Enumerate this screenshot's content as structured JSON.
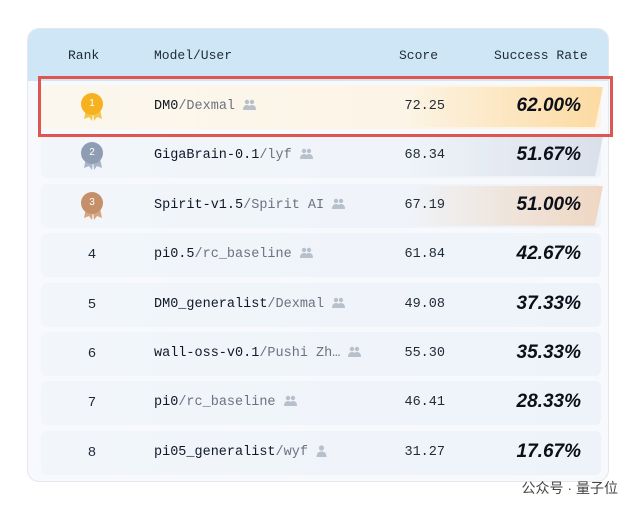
{
  "table": {
    "columns": [
      "Rank",
      "Model/User",
      "Score",
      "Success Rate"
    ],
    "rows": [
      {
        "rank": "1",
        "model": "DM0",
        "user": "/Dexmal",
        "score": "72.25",
        "rate": "62.00%"
      },
      {
        "rank": "2",
        "model": "GigaBrain-0.1",
        "user": "/lyf",
        "score": "68.34",
        "rate": "51.67%"
      },
      {
        "rank": "3",
        "model": "Spirit-v1.5",
        "user": "/Spirit AI",
        "score": "67.19",
        "rate": "51.00%"
      },
      {
        "rank": "4",
        "model": "pi0.5",
        "user": "/rc_baseline",
        "score": "61.84",
        "rate": "42.67%"
      },
      {
        "rank": "5",
        "model": "DM0_generalist",
        "user": "/Dexmal",
        "score": "49.08",
        "rate": "37.33%"
      },
      {
        "rank": "6",
        "model": "wall-oss-v0.1",
        "user": "/Pushi Zh…",
        "score": "55.30",
        "rate": "35.33%"
      },
      {
        "rank": "7",
        "model": "pi0",
        "user": "/rc_baseline",
        "score": "46.41",
        "rate": "28.33%"
      },
      {
        "rank": "8",
        "model": "pi05_generalist",
        "user": "/wyf",
        "score": "31.27",
        "rate": "17.67%"
      }
    ]
  },
  "watermark": "公众号 · 量子位"
}
